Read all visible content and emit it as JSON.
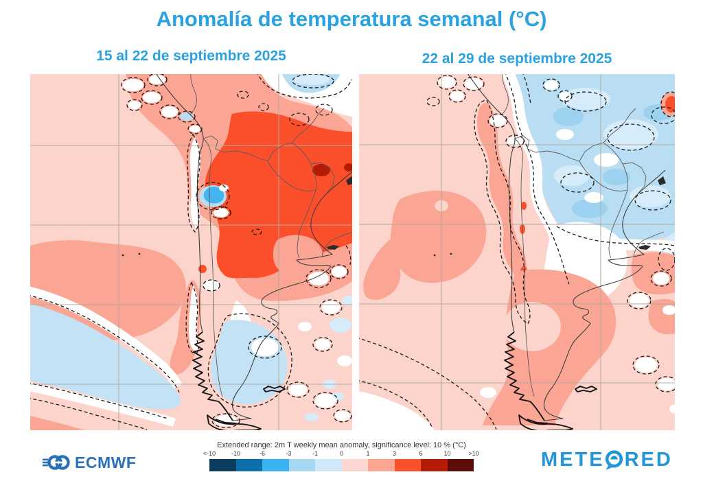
{
  "title": "Anomalía de temperatura semanal  (°C)",
  "panels": [
    {
      "label": "15 al 22 de septiembre 2025"
    },
    {
      "label": "22 al 29 de septiembre 2025"
    }
  ],
  "legend": {
    "title": "Extended range: 2m T weekly mean anomaly, significance level: 10 % (°C)",
    "ticks": [
      "<-10",
      "-10",
      "-6",
      "-3",
      "-1",
      "0",
      "1",
      "3",
      "6",
      "10",
      ">10"
    ],
    "colors": [
      "#0c3c5e",
      "#0b70ad",
      "#3ab3f3",
      "#a6d7f3",
      "#cfe9fa",
      "#fdd7cf",
      "#fda593",
      "#fc4f2b",
      "#b61b06",
      "#5c0d08"
    ]
  },
  "branding": {
    "ecmwf_label": "ECMWF",
    "meteored_prefix": "METE",
    "meteored_suffix": "RED"
  },
  "colors": {
    "accent_blue": "#2aa2e1",
    "ecmwf_blue": "#2a70b6",
    "meteored_blue": "#2196d8",
    "map_bg_pink": "#fcd4cc",
    "map_salmon": "#fba694",
    "map_orange_red": "#fb4f2c",
    "map_dark_red": "#b61b06",
    "map_light_blue": "#b9ddf3",
    "map_pale_blue": "#d6ecfa",
    "map_mid_blue": "#9cd1ef",
    "map_ocean_blue": "#c4e2f6",
    "map_cyan": "#45b5ef"
  }
}
